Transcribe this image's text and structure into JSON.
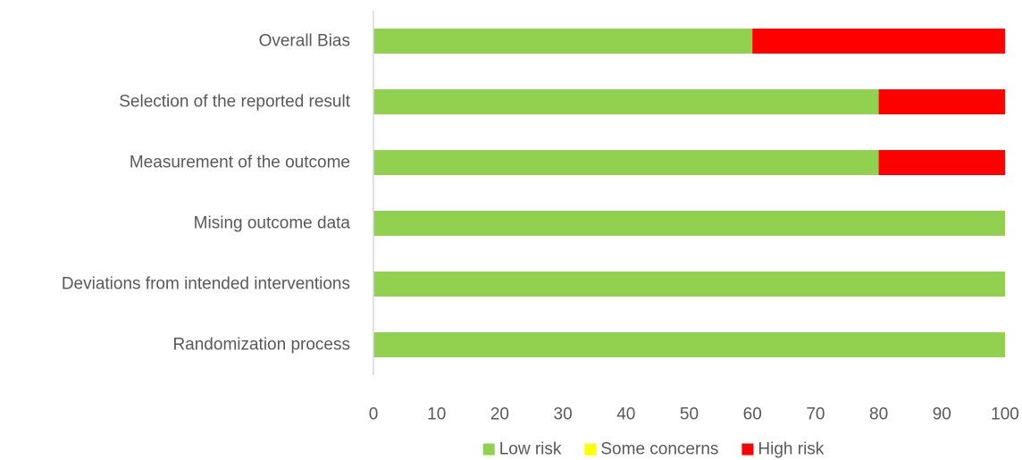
{
  "chart_data": {
    "type": "bar",
    "orientation": "horizontal",
    "stacked": true,
    "categories": [
      "Overall Bias",
      "Selection of the reported result",
      "Measurement of the outcome",
      "Mising outcome data",
      "Deviations from intended interventions",
      "Randomization process"
    ],
    "series": [
      {
        "name": "Low risk",
        "color": "#92d050",
        "values": [
          60,
          80,
          80,
          100,
          100,
          100
        ]
      },
      {
        "name": "Some concerns",
        "color": "#ffff00",
        "values": [
          0,
          0,
          0,
          0,
          0,
          0
        ]
      },
      {
        "name": "High risk",
        "color": "#ff0000",
        "values": [
          40,
          20,
          20,
          0,
          0,
          0
        ]
      }
    ],
    "xlim": [
      0,
      100
    ],
    "xticks": [
      "0",
      "10",
      "20",
      "30",
      "40",
      "50",
      "60",
      "70",
      "80",
      "90",
      "100"
    ],
    "title": "",
    "xlabel": "",
    "ylabel": "",
    "grid": false,
    "legend_position": "bottom"
  }
}
